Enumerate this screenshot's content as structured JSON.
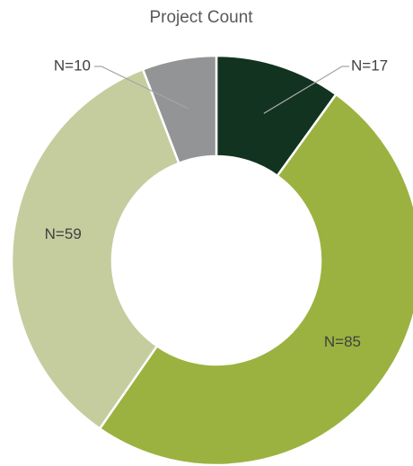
{
  "chart_data": {
    "type": "donut",
    "title": "Project Count",
    "values": [
      17,
      85,
      59,
      10
    ],
    "value_labels": [
      "N=17",
      "N=85",
      "N=59",
      "N=10"
    ],
    "colors": [
      "#12331f",
      "#9bb240",
      "#c5cd9f",
      "#929496"
    ]
  }
}
